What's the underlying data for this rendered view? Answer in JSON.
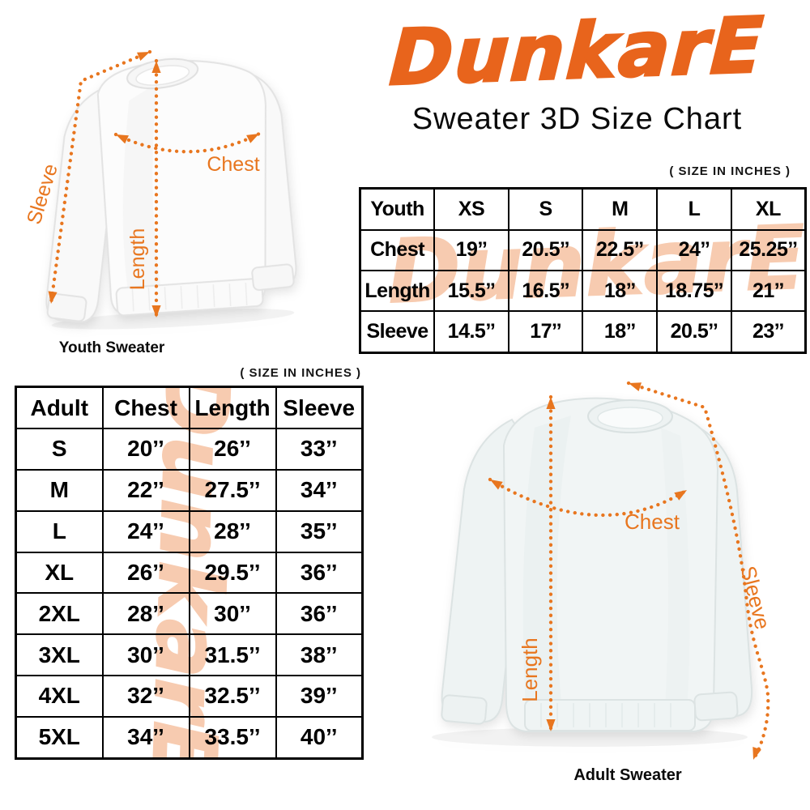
{
  "brand": {
    "logo_text": "DunkarE",
    "title": "Sweater 3D Size Chart",
    "accent_color": "#E8641C",
    "arrow_color": "#E8761F",
    "watermark_color": "#F7CBB0"
  },
  "youth": {
    "size_note": "( SIZE IN INCHES )",
    "caption": "Youth Sweater",
    "measurements": {
      "chest": "Chest",
      "length": "Length",
      "sleeve": "Sleeve"
    },
    "table": {
      "header": [
        "Youth",
        "XS",
        "S",
        "M",
        "L",
        "XL"
      ],
      "rows": [
        {
          "label": "Chest",
          "values": [
            "19’’",
            "20.5’’",
            "22.5’’",
            "24’’",
            "25.25’’"
          ]
        },
        {
          "label": "Length",
          "values": [
            "15.5’’",
            "16.5’’",
            "18’’",
            "18.75’’",
            "21’’"
          ]
        },
        {
          "label": "Sleeve",
          "values": [
            "14.5’’",
            "17’’",
            "18’’",
            "20.5’’",
            "23’’"
          ]
        }
      ]
    }
  },
  "adult": {
    "size_note": "( SIZE IN INCHES )",
    "caption": "Adult Sweater",
    "measurements": {
      "chest": "Chest",
      "length": "Length",
      "sleeve": "Sleeve"
    },
    "table": {
      "header": [
        "Adult",
        "Chest",
        "Length",
        "Sleeve"
      ],
      "rows": [
        {
          "label": "S",
          "values": [
            "20’’",
            "26’’",
            "33’’"
          ]
        },
        {
          "label": "M",
          "values": [
            "22’’",
            "27.5’’",
            "34’’"
          ]
        },
        {
          "label": "L",
          "values": [
            "24’’",
            "28’’",
            "35’’"
          ]
        },
        {
          "label": "XL",
          "values": [
            "26’’",
            "29.5’’",
            "36’’"
          ]
        },
        {
          "label": "2XL",
          "values": [
            "28’’",
            "30’’",
            "36’’"
          ]
        },
        {
          "label": "3XL",
          "values": [
            "30’’",
            "31.5’’",
            "38’’"
          ]
        },
        {
          "label": "4XL",
          "values": [
            "32’’",
            "32.5’’",
            "39’’"
          ]
        },
        {
          "label": "5XL",
          "values": [
            "34’’",
            "33.5’’",
            "40’’"
          ]
        }
      ]
    }
  },
  "chart_data": [
    {
      "type": "table",
      "title": "Youth sweater sizes (inches)",
      "columns": [
        "Youth",
        "XS",
        "S",
        "M",
        "L",
        "XL"
      ],
      "rows": [
        [
          "Chest",
          19,
          20.5,
          22.5,
          24,
          25.25
        ],
        [
          "Length",
          15.5,
          16.5,
          18,
          18.75,
          21
        ],
        [
          "Sleeve",
          14.5,
          17,
          18,
          20.5,
          23
        ]
      ]
    },
    {
      "type": "table",
      "title": "Adult sweater sizes (inches)",
      "columns": [
        "Adult",
        "Chest",
        "Length",
        "Sleeve"
      ],
      "rows": [
        [
          "S",
          20,
          26,
          33
        ],
        [
          "M",
          22,
          27.5,
          34
        ],
        [
          "L",
          24,
          28,
          35
        ],
        [
          "XL",
          26,
          29.5,
          36
        ],
        [
          "2XL",
          28,
          30,
          36
        ],
        [
          "3XL",
          30,
          31.5,
          38
        ],
        [
          "4XL",
          32,
          32.5,
          39
        ],
        [
          "5XL",
          34,
          33.5,
          40
        ]
      ]
    }
  ]
}
